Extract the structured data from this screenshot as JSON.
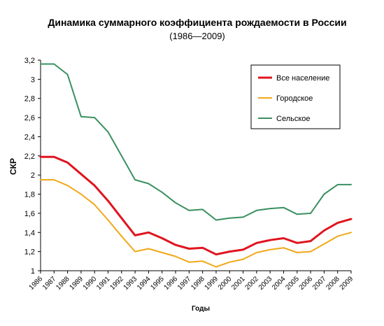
{
  "chart_data": {
    "type": "line",
    "title": "Динамика суммарного коэффициента рождаемости в России",
    "subtitle": "(1986—2009)",
    "xlabel": "Годы",
    "ylabel": "СКР",
    "ylim": [
      1,
      3.2
    ],
    "y_ticks": [
      "1",
      "1,2",
      "1,4",
      "1,6",
      "1,8",
      "2",
      "2,2",
      "2,4",
      "2,6",
      "2,8",
      "3",
      "3,2"
    ],
    "y_tick_values": [
      1,
      1.2,
      1.4,
      1.6,
      1.8,
      2,
      2.2,
      2.4,
      2.6,
      2.8,
      3,
      3.2
    ],
    "x": [
      "1986",
      "1987",
      "1988",
      "1989",
      "1990",
      "1991",
      "1992",
      "1993",
      "1994",
      "1995",
      "1996",
      "1997",
      "1998",
      "1999",
      "2000",
      "2001",
      "2002",
      "2003",
      "2004",
      "2005",
      "2006",
      "2007",
      "2008",
      "2009"
    ],
    "grid": false,
    "legend_position": "top-right",
    "series": [
      {
        "name": "Все население",
        "color": "#e0141e",
        "values": [
          2.19,
          2.19,
          2.13,
          2.01,
          1.89,
          1.73,
          1.55,
          1.37,
          1.4,
          1.34,
          1.27,
          1.23,
          1.24,
          1.17,
          1.2,
          1.22,
          1.29,
          1.32,
          1.34,
          1.29,
          1.31,
          1.42,
          1.5,
          1.54
        ]
      },
      {
        "name": "Городское",
        "color": "#f0a818",
        "values": [
          1.95,
          1.95,
          1.89,
          1.8,
          1.69,
          1.53,
          1.36,
          1.2,
          1.23,
          1.19,
          1.15,
          1.09,
          1.1,
          1.04,
          1.09,
          1.12,
          1.19,
          1.22,
          1.24,
          1.19,
          1.2,
          1.28,
          1.36,
          1.4
        ]
      },
      {
        "name": "Сельское",
        "color": "#3a9060",
        "values": [
          3.16,
          3.16,
          3.05,
          2.61,
          2.6,
          2.45,
          2.2,
          1.95,
          1.91,
          1.82,
          1.71,
          1.63,
          1.64,
          1.53,
          1.55,
          1.56,
          1.63,
          1.65,
          1.66,
          1.59,
          1.6,
          1.8,
          1.9,
          1.9
        ]
      }
    ]
  }
}
